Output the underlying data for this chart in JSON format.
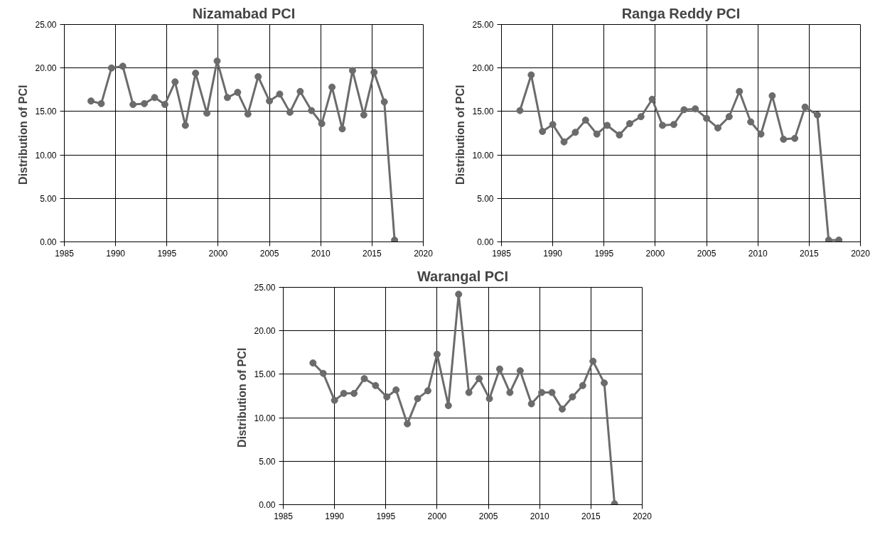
{
  "chart_data": [
    {
      "type": "line",
      "title": "Nizamabad PCI",
      "ylabel": "Distribution of  PCI",
      "color": "#6b6b6b",
      "marker": "circle",
      "line_style": "solid",
      "grid": true,
      "xlim": [
        1985,
        2020
      ],
      "xticks": [
        1985,
        1990,
        1995,
        2000,
        2005,
        2010,
        2015,
        2020
      ],
      "ylim": [
        0,
        25
      ],
      "yticks": [
        {
          "value": 0,
          "label": "0.00"
        },
        {
          "value": 5,
          "label": "5.00"
        },
        {
          "value": 10,
          "label": "10.00"
        },
        {
          "value": 15,
          "label": "15.00"
        },
        {
          "value": 20,
          "label": "20.00"
        },
        {
          "value": 25,
          "label": "25.00"
        }
      ],
      "x": [
        1987.6,
        1988.6,
        1989.6,
        1990.7,
        1991.7,
        1992.8,
        1993.8,
        1994.8,
        1995.8,
        1996.8,
        1997.8,
        1998.9,
        1999.9,
        2000.9,
        2001.9,
        2002.9,
        2003.9,
        2005.0,
        2006.0,
        2007.0,
        2008.0,
        2009.1,
        2010.1,
        2011.1,
        2012.1,
        2013.1,
        2014.2,
        2015.2,
        2016.2,
        2017.2
      ],
      "values": [
        16.2,
        15.9,
        20.0,
        20.2,
        15.8,
        15.9,
        16.6,
        15.8,
        18.4,
        13.4,
        19.4,
        14.8,
        20.8,
        16.6,
        17.2,
        14.7,
        19.0,
        16.2,
        17.0,
        14.9,
        17.3,
        15.1,
        13.6,
        17.8,
        13.0,
        19.7,
        14.6,
        19.5,
        16.1,
        0.2
      ]
    },
    {
      "type": "line",
      "title": "Ranga Reddy PCI",
      "ylabel": "Distribution of  PCI",
      "color": "#6b6b6b",
      "marker": "circle",
      "line_style": "solid",
      "grid": true,
      "xlim": [
        1985,
        2020
      ],
      "xticks": [
        1985,
        1990,
        1995,
        2000,
        2005,
        2010,
        2015,
        2020
      ],
      "ylim": [
        0,
        25
      ],
      "yticks": [
        {
          "value": 0,
          "label": "0.00"
        },
        {
          "value": 5,
          "label": "5.00"
        },
        {
          "value": 10,
          "label": "10.00"
        },
        {
          "value": 15,
          "label": "15.00"
        },
        {
          "value": 20,
          "label": "20.00"
        },
        {
          "value": 25,
          "label": "25.00"
        }
      ],
      "x": [
        1986.8,
        1987.9,
        1989.0,
        1990.0,
        1991.1,
        1992.2,
        1993.2,
        1994.3,
        1995.3,
        1996.5,
        1997.5,
        1998.6,
        1999.7,
        2000.7,
        2001.8,
        2002.8,
        2003.9,
        2005.0,
        2006.1,
        2007.2,
        2008.2,
        2009.3,
        2010.3,
        2011.4,
        2012.5,
        2013.6,
        2014.6,
        2015.8,
        2016.9,
        2017.9
      ],
      "values": [
        15.1,
        19.2,
        12.7,
        13.5,
        11.5,
        12.6,
        14.0,
        12.4,
        13.4,
        12.3,
        13.6,
        14.4,
        16.4,
        13.4,
        13.5,
        15.2,
        15.3,
        14.2,
        13.1,
        14.4,
        17.3,
        13.8,
        12.4,
        16.8,
        11.8,
        11.9,
        15.5,
        14.6,
        0.2,
        0.2
      ]
    },
    {
      "type": "line",
      "title": "Warangal PCI",
      "ylabel": "Distribution of  PCI",
      "color": "#6b6b6b",
      "marker": "circle",
      "line_style": "solid",
      "grid": true,
      "xlim": [
        1985,
        2020
      ],
      "xticks": [
        1985,
        1990,
        1995,
        2000,
        2005,
        2010,
        2015,
        2020
      ],
      "ylim": [
        0,
        25
      ],
      "yticks": [
        {
          "value": 0,
          "label": "0.00"
        },
        {
          "value": 5,
          "label": "5.00"
        },
        {
          "value": 10,
          "label": "10.00"
        },
        {
          "value": 15,
          "label": "15.00"
        },
        {
          "value": 20,
          "label": "20.00"
        },
        {
          "value": 25,
          "label": "25.00"
        }
      ],
      "x": [
        1987.9,
        1988.9,
        1990.0,
        1990.9,
        1991.9,
        1992.9,
        1994.0,
        1995.1,
        1996.0,
        1997.1,
        1998.1,
        1999.1,
        2000.0,
        2001.1,
        2002.1,
        2003.1,
        2004.1,
        2005.1,
        2006.1,
        2007.1,
        2008.1,
        2009.2,
        2010.2,
        2011.2,
        2012.2,
        2013.2,
        2014.2,
        2015.2,
        2016.3,
        2017.3
      ],
      "values": [
        16.3,
        15.1,
        12.0,
        12.8,
        12.8,
        14.5,
        13.7,
        12.4,
        13.2,
        9.3,
        12.2,
        13.1,
        17.3,
        11.4,
        24.2,
        12.9,
        14.5,
        12.2,
        15.6,
        12.9,
        15.4,
        11.6,
        12.9,
        12.9,
        11.0,
        12.4,
        13.7,
        16.5,
        14.0,
        0.1
      ]
    }
  ]
}
